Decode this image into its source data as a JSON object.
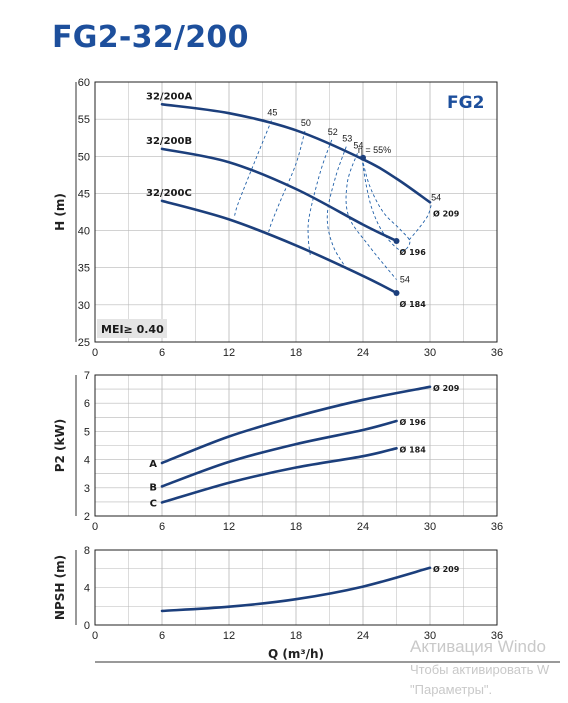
{
  "page": {
    "title": "FG2-32/200"
  },
  "colors": {
    "curve": "#1c3f7c",
    "efficiency": "#1f5fa8",
    "title": "#1d4f9c",
    "grid": "#b8b8b8",
    "axis": "#222222"
  },
  "chart_data": [
    {
      "type": "line",
      "brand_label": "FG2",
      "badge": "MEI≥ 0.40",
      "xlabel": "",
      "ylabel": "H (m)",
      "xlim": [
        0,
        36
      ],
      "ylim": [
        25,
        60
      ],
      "xticks": [
        0,
        6,
        12,
        18,
        24,
        30,
        36
      ],
      "yticks": [
        25,
        30,
        35,
        40,
        45,
        50,
        55,
        60
      ],
      "grid": true,
      "series": [
        {
          "name": "32/200A",
          "end_label": "Ø 209",
          "x": [
            6,
            12,
            18,
            24,
            27,
            30
          ],
          "y": [
            57,
            55.8,
            53.5,
            49.6,
            47.0,
            43.8
          ]
        },
        {
          "name": "32/200B",
          "end_label": "Ø 196",
          "x": [
            6,
            12,
            18,
            24,
            27
          ],
          "y": [
            51,
            49.2,
            45.6,
            40.8,
            38.6
          ]
        },
        {
          "name": "32/200C",
          "end_label": "Ø 184",
          "x": [
            6,
            12,
            18,
            24,
            27
          ],
          "y": [
            44,
            41.5,
            38.0,
            33.9,
            31.6
          ]
        }
      ],
      "efficiency_lines": [
        {
          "label": "45",
          "x": [
            15.8,
            14.5,
            12.9,
            12.5
          ],
          "y": [
            54.8,
            50.0,
            44.0,
            42.0
          ]
        },
        {
          "label": "50",
          "x": [
            18.8,
            18.0,
            16.6,
            15.8,
            15.5
          ],
          "y": [
            53.4,
            49.0,
            44.0,
            41.0,
            39.5
          ]
        },
        {
          "label": "52",
          "x": [
            21.2,
            20.2,
            19.2,
            19.1,
            19.3
          ],
          "y": [
            52.2,
            48.0,
            42.0,
            39.0,
            36.5
          ]
        },
        {
          "label": "53",
          "x": [
            22.5,
            21.5,
            20.8,
            21.3,
            22.6
          ],
          "y": [
            51.3,
            47.0,
            42.0,
            38.0,
            34.7
          ]
        },
        {
          "label": "54",
          "x": [
            23.5,
            22.6,
            22.7,
            24.5,
            27.0
          ],
          "y": [
            50.4,
            46.5,
            42.0,
            38.0,
            33.4
          ]
        },
        {
          "label": "η = 55%",
          "x": [
            23.9,
            24.6,
            25.8,
            27.3,
            28.2,
            27.4,
            25.9,
            24.9,
            24.3,
            23.9
          ],
          "y": [
            49.8,
            46.0,
            42.5,
            40.2,
            38.5,
            37.3,
            39.5,
            42.5,
            46.0,
            49.8
          ]
        },
        {
          "label": "54",
          "x": [
            30.1,
            29.8,
            29.0,
            28.1
          ],
          "y": [
            43.4,
            42.0,
            40.3,
            38.7
          ]
        }
      ],
      "markers": [
        {
          "x": 24,
          "y": 49.8
        },
        {
          "x": 27,
          "y": 38.6
        },
        {
          "x": 27,
          "y": 31.6
        }
      ],
      "extra_labels": [
        {
          "text": "54",
          "x": 27.3,
          "y": 33.0
        }
      ]
    },
    {
      "type": "line",
      "xlabel": "",
      "ylabel": "P2 (kW)",
      "xlim": [
        0,
        36
      ],
      "ylim": [
        2,
        7
      ],
      "xticks": [
        0,
        6,
        12,
        18,
        24,
        30,
        36
      ],
      "yticks": [
        2,
        3,
        4,
        5,
        6,
        7
      ],
      "grid": true,
      "series": [
        {
          "name": "A",
          "end_label": "Ø 209",
          "x": [
            6,
            12,
            18,
            24,
            30
          ],
          "y": [
            3.88,
            4.82,
            5.53,
            6.12,
            6.58
          ]
        },
        {
          "name": "B",
          "end_label": "Ø 196",
          "x": [
            6,
            12,
            18,
            24,
            27
          ],
          "y": [
            3.05,
            3.92,
            4.55,
            5.05,
            5.37
          ]
        },
        {
          "name": "C",
          "end_label": "Ø 184",
          "x": [
            6,
            12,
            18,
            24,
            27
          ],
          "y": [
            2.48,
            3.18,
            3.72,
            4.12,
            4.4
          ]
        }
      ]
    },
    {
      "type": "line",
      "xlabel": "Q (m³/h)",
      "ylabel": "NPSH (m)",
      "xlim": [
        0,
        36
      ],
      "ylim": [
        0,
        8
      ],
      "xticks": [
        0,
        6,
        12,
        18,
        24,
        30,
        36
      ],
      "yticks": [
        0,
        4,
        8
      ],
      "grid": true,
      "series": [
        {
          "name": "",
          "end_label": "Ø 209",
          "x": [
            6,
            12,
            18,
            24,
            30
          ],
          "y": [
            1.5,
            1.95,
            2.75,
            4.1,
            6.1
          ]
        }
      ]
    }
  ],
  "overlay": {
    "line1": "Активация Windo",
    "line2": "Чтобы активировать W",
    "line3": "\"Параметры\"."
  }
}
